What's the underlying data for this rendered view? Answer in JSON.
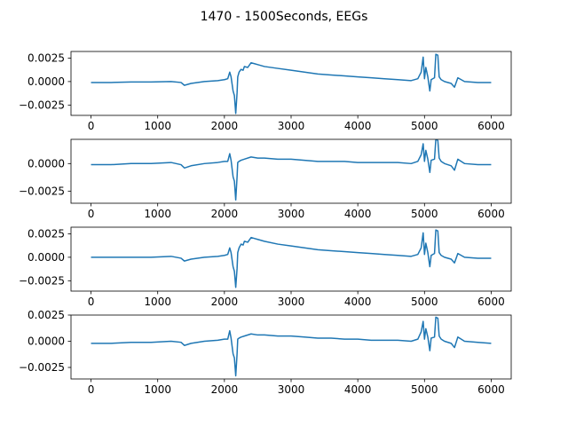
{
  "figure": {
    "title": "1470 - 1500Seconds, EEGs"
  },
  "chart_data": [
    {
      "type": "line",
      "title": "",
      "xlabel": "",
      "ylabel": "",
      "xlim": [
        -300,
        6300
      ],
      "ylim": [
        -0.0036,
        0.0032
      ],
      "xticks": [
        0,
        1000,
        2000,
        3000,
        4000,
        5000,
        6000
      ],
      "yticks": [
        0.0025,
        0.0,
        -0.0025
      ],
      "ytick_labels": [
        "0.0025",
        "0.0000",
        "−0.0025"
      ],
      "grid": false,
      "series": [
        {
          "color": "#1f77b4",
          "x": [
            0,
            300,
            600,
            900,
            1200,
            1350,
            1400,
            1500,
            1700,
            1900,
            2000,
            2050,
            2080,
            2100,
            2130,
            2150,
            2170,
            2190,
            2200,
            2220,
            2250,
            2280,
            2300,
            2350,
            2400,
            2450,
            2500,
            2600,
            2800,
            3000,
            3200,
            3400,
            3600,
            3800,
            4000,
            4200,
            4400,
            4600,
            4800,
            4900,
            4950,
            4980,
            5000,
            5020,
            5050,
            5080,
            5100,
            5150,
            5170,
            5200,
            5220,
            5250,
            5300,
            5400,
            5450,
            5500,
            5550,
            5600,
            5800,
            6000
          ],
          "values": [
            -0.0001,
            -0.0001,
            -5e-05,
            -5e-05,
            0.0,
            -0.0001,
            -0.0004,
            -0.0002,
            0.0,
            0.0001,
            0.0002,
            0.0003,
            0.001,
            0.0005,
            -0.001,
            -0.0015,
            -0.0034,
            -0.0012,
            0.0005,
            0.001,
            0.0013,
            0.0012,
            0.0016,
            0.0015,
            0.002,
            0.0019,
            0.0018,
            0.0016,
            0.0014,
            0.0012,
            0.001,
            0.0008,
            0.0007,
            0.0006,
            0.0005,
            0.0004,
            0.0003,
            0.0002,
            0.0001,
            0.0003,
            0.001,
            0.0026,
            0.0003,
            0.0015,
            0.0005,
            -0.001,
            0.0002,
            0.0004,
            0.0029,
            0.0028,
            0.0005,
            0.0002,
            0.0,
            -0.0002,
            -0.0006,
            0.0004,
            0.0002,
            0.0,
            -0.0001,
            -0.0001
          ]
        }
      ]
    },
    {
      "type": "line",
      "title": "",
      "xlabel": "",
      "ylabel": "",
      "xlim": [
        -300,
        6300
      ],
      "ylim": [
        -0.0036,
        0.0022
      ],
      "xticks": [
        0,
        1000,
        2000,
        3000,
        4000,
        5000,
        6000
      ],
      "yticks": [
        0.0,
        -0.0025
      ],
      "ytick_labels": [
        "0.0000",
        "−0.0025"
      ],
      "grid": false,
      "series": [
        {
          "color": "#1f77b4",
          "x": [
            0,
            300,
            600,
            900,
            1200,
            1350,
            1400,
            1500,
            1700,
            1900,
            2000,
            2050,
            2080,
            2100,
            2130,
            2150,
            2170,
            2190,
            2200,
            2220,
            2250,
            2300,
            2400,
            2500,
            2600,
            2800,
            3000,
            3200,
            3400,
            3600,
            3800,
            4000,
            4200,
            4400,
            4600,
            4800,
            4900,
            4950,
            4980,
            5000,
            5020,
            5050,
            5080,
            5100,
            5150,
            5170,
            5200,
            5220,
            5250,
            5300,
            5400,
            5450,
            5500,
            5550,
            5600,
            5800,
            6000
          ],
          "values": [
            -0.0001,
            -0.0001,
            0.0,
            0.0,
            0.0001,
            -0.0001,
            -0.0004,
            -0.0002,
            0.0,
            0.0001,
            0.0002,
            0.0002,
            0.0009,
            0.0003,
            -0.0012,
            -0.0016,
            -0.0033,
            -0.0012,
            0.0001,
            0.0002,
            0.0003,
            0.0004,
            0.0006,
            0.0005,
            0.0005,
            0.0004,
            0.0004,
            0.0003,
            0.0002,
            0.0002,
            0.0002,
            0.0001,
            0.0001,
            0.0001,
            0.0001,
            0.0,
            0.0002,
            0.0008,
            0.0018,
            0.0002,
            0.0012,
            0.0004,
            -0.0008,
            0.0003,
            0.0004,
            0.0022,
            0.0021,
            0.0005,
            0.0002,
            0.0,
            -0.0002,
            -0.0006,
            0.0004,
            0.0002,
            0.0,
            -0.0001,
            -0.0001
          ]
        }
      ]
    },
    {
      "type": "line",
      "title": "",
      "xlabel": "",
      "ylabel": "",
      "xlim": [
        -300,
        6300
      ],
      "ylim": [
        -0.0036,
        0.0032
      ],
      "xticks": [
        0,
        1000,
        2000,
        3000,
        4000,
        5000,
        6000
      ],
      "yticks": [
        0.0025,
        0.0,
        -0.0025
      ],
      "ytick_labels": [
        "0.0025",
        "0.0000",
        "−0.0025"
      ],
      "grid": false,
      "series": [
        {
          "color": "#1f77b4",
          "x": [
            0,
            300,
            600,
            900,
            1200,
            1350,
            1400,
            1500,
            1700,
            1900,
            2000,
            2050,
            2080,
            2100,
            2130,
            2150,
            2170,
            2190,
            2200,
            2220,
            2250,
            2280,
            2300,
            2350,
            2400,
            2450,
            2500,
            2600,
            2800,
            3000,
            3200,
            3400,
            3600,
            3800,
            4000,
            4200,
            4400,
            4600,
            4800,
            4900,
            4950,
            4980,
            5000,
            5020,
            5050,
            5080,
            5100,
            5150,
            5170,
            5200,
            5220,
            5250,
            5300,
            5400,
            5450,
            5500,
            5550,
            5600,
            5800,
            6000
          ],
          "values": [
            0.0,
            0.0,
            0.0,
            0.0,
            0.0001,
            -0.0001,
            -0.0004,
            -0.0002,
            0.0,
            0.0001,
            0.0002,
            0.0003,
            0.001,
            0.0005,
            -0.001,
            -0.0015,
            -0.0032,
            -0.0012,
            0.0005,
            0.001,
            0.0014,
            0.0013,
            0.0017,
            0.0016,
            0.0021,
            0.002,
            0.0019,
            0.0017,
            0.0014,
            0.0012,
            0.001,
            0.0008,
            0.0007,
            0.0006,
            0.0005,
            0.0004,
            0.0003,
            0.0002,
            0.0001,
            0.0003,
            0.001,
            0.0026,
            0.0003,
            0.0015,
            0.0005,
            -0.001,
            0.0002,
            0.0004,
            0.0029,
            0.0028,
            0.0005,
            0.0002,
            0.0,
            -0.0002,
            -0.0006,
            0.0004,
            0.0002,
            0.0,
            -0.0001,
            -0.0001
          ]
        }
      ]
    },
    {
      "type": "line",
      "title": "",
      "xlabel": "",
      "ylabel": "",
      "xlim": [
        -300,
        6300
      ],
      "ylim": [
        -0.0036,
        0.0025
      ],
      "xticks": [
        0,
        1000,
        2000,
        3000,
        4000,
        5000,
        6000
      ],
      "yticks": [
        0.0025,
        0.0,
        -0.0025
      ],
      "ytick_labels": [
        "0.0025",
        "0.0000",
        "−0.0025"
      ],
      "grid": false,
      "series": [
        {
          "color": "#1f77b4",
          "x": [
            0,
            300,
            600,
            900,
            1200,
            1350,
            1400,
            1500,
            1700,
            1900,
            2000,
            2050,
            2080,
            2100,
            2130,
            2150,
            2170,
            2190,
            2200,
            2220,
            2250,
            2300,
            2400,
            2500,
            2600,
            2800,
            3000,
            3200,
            3400,
            3600,
            3800,
            4000,
            4200,
            4400,
            4600,
            4800,
            4900,
            4950,
            4980,
            5000,
            5020,
            5050,
            5080,
            5100,
            5150,
            5170,
            5200,
            5220,
            5250,
            5300,
            5400,
            5450,
            5500,
            5550,
            5600,
            5800,
            6000
          ],
          "values": [
            -0.0002,
            -0.0002,
            -0.0001,
            -0.0001,
            0.0,
            -0.0001,
            -0.0004,
            -0.0002,
            0.0,
            0.0001,
            0.0002,
            0.0002,
            0.001,
            0.0003,
            -0.0012,
            -0.0016,
            -0.0033,
            -0.0012,
            0.0002,
            0.0003,
            0.0004,
            0.0005,
            0.0007,
            0.0006,
            0.0006,
            0.0005,
            0.0005,
            0.0004,
            0.0003,
            0.0003,
            0.0002,
            0.0002,
            0.0001,
            0.0001,
            0.0001,
            0.0,
            0.0002,
            0.0009,
            0.0019,
            0.0002,
            0.0012,
            0.0004,
            -0.0009,
            0.0003,
            0.0004,
            0.0023,
            0.0022,
            0.0005,
            0.0002,
            0.0,
            -0.0002,
            -0.0006,
            0.0004,
            0.0002,
            0.0,
            -0.0001,
            -0.0002
          ]
        }
      ]
    }
  ]
}
